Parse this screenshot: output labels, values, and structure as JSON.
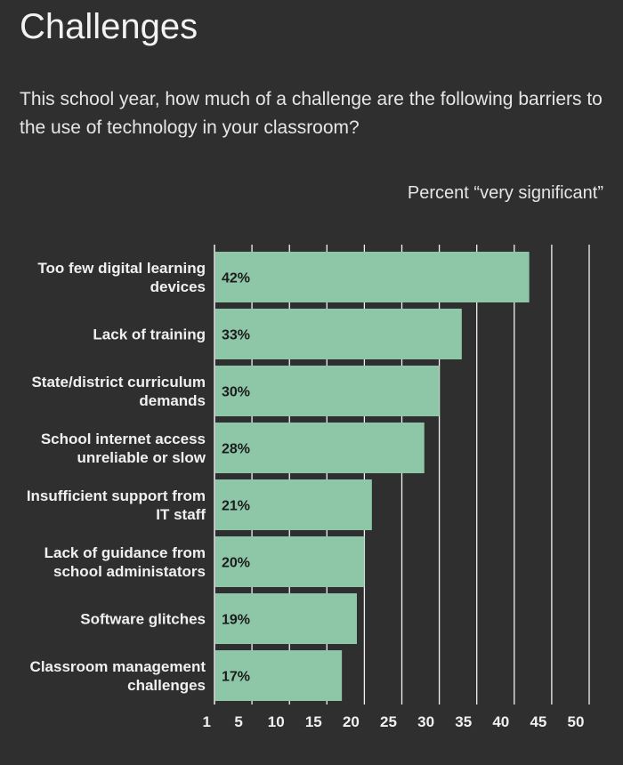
{
  "page": {
    "title": "Challenges",
    "subtitle": "This school year, how much of a challenge are the following barriers to the use of technology in your classroom?",
    "axis_caption": "Percent “very significant”"
  },
  "colors": {
    "background": "#2f2f2f",
    "bar": "#8ec6a8",
    "grid": "#f2f2f2",
    "text": "#f0f0f0",
    "value_text": "#1c1c1c"
  },
  "chart_data": {
    "type": "bar",
    "orientation": "horizontal",
    "title": "Challenges",
    "xlabel": "Percent “very significant”",
    "ylabel": "",
    "categories": [
      [
        "Too few digital learning",
        "devices"
      ],
      [
        "Lack of training"
      ],
      [
        "State/district curriculum",
        "demands"
      ],
      [
        "School internet access",
        "unreliable or slow"
      ],
      [
        "Insufficient support from",
        "IT staff"
      ],
      [
        "Lack of guidance from",
        "school administators"
      ],
      [
        "Software glitches"
      ],
      [
        "Classroom management",
        "challenges"
      ]
    ],
    "values": [
      42,
      33,
      30,
      28,
      21,
      20,
      19,
      17
    ],
    "value_labels": [
      "42%",
      "33%",
      "30%",
      "28%",
      "21%",
      "20%",
      "19%",
      "17%"
    ],
    "xticks": [
      1,
      5,
      10,
      15,
      20,
      25,
      30,
      35,
      40,
      45,
      50
    ],
    "xlim": [
      0,
      50
    ],
    "grid": true,
    "legend": "none"
  }
}
